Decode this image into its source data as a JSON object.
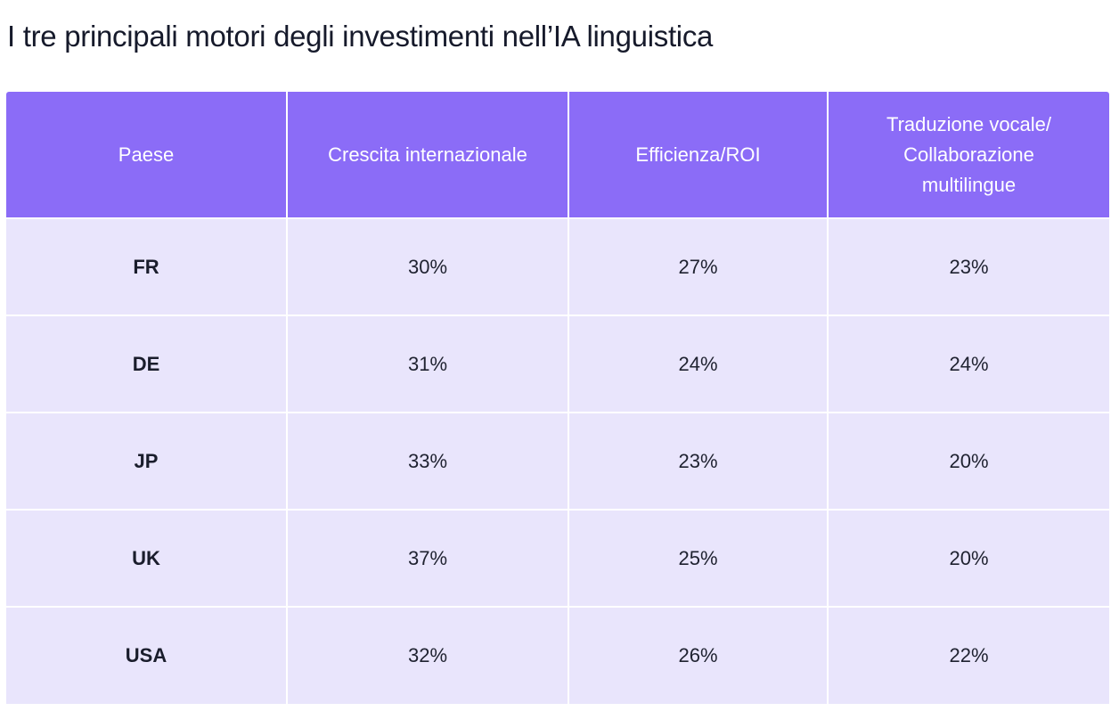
{
  "title": "I tre principali motori degli investimenti nell’IA linguistica",
  "table": {
    "headers": [
      "Paese",
      "Crescita internazionale",
      "Efficienza/ROI",
      "Traduzione vocale/ Collaborazione multilingue"
    ],
    "rows": [
      [
        "FR",
        "30%",
        "27%",
        "23%"
      ],
      [
        "DE",
        "31%",
        "24%",
        "24%"
      ],
      [
        "JP",
        "33%",
        "23%",
        "20%"
      ],
      [
        "UK",
        "37%",
        "25%",
        "20%"
      ],
      [
        "USA",
        "32%",
        "26%",
        "22%"
      ]
    ]
  },
  "colors": {
    "header_bg": "#8b6cf7",
    "row_bg": "#e9e5fc",
    "title_text": "#161a2b"
  }
}
